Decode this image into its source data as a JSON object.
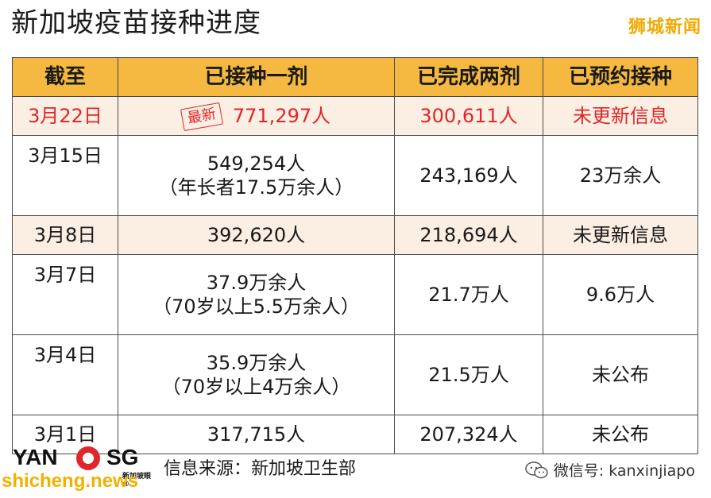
{
  "title": "新加坡疫苗接种进度",
  "brand_top": "狮城新闻",
  "table": {
    "headers": [
      "截至",
      "已接种一剂",
      "已完成两剂",
      "已预约接种"
    ],
    "rows": [
      {
        "date": "3月22日",
        "badge": "最新",
        "first_dose": [
          "771,297人"
        ],
        "two_doses": "300,611人",
        "booked": "未更新信息"
      },
      {
        "date": "3月15日",
        "first_dose": [
          "549,254人",
          "（年长者17.5万余人）"
        ],
        "two_doses": "243,169人",
        "booked": "23万余人"
      },
      {
        "date": "3月8日",
        "first_dose": [
          "392,620人"
        ],
        "two_doses": "218,694人",
        "booked": "未更新信息"
      },
      {
        "date": "3月7日",
        "first_dose": [
          "37.9万余人",
          "（70岁以上5.5万余人）"
        ],
        "two_doses": "21.7万人",
        "booked": "9.6万人"
      },
      {
        "date": "3月4日",
        "first_dose": [
          "35.9万余人",
          "（70岁以上4万余人）"
        ],
        "two_doses": "21.5万人",
        "booked": "未公布"
      },
      {
        "date": "3月1日",
        "first_dose": [
          "317,715人"
        ],
        "two_doses": "207,324人",
        "booked": "未公布"
      }
    ]
  },
  "footer": {
    "logo_left": "YAN",
    "logo_right": "SG",
    "logo_sub": "新加坡眼®",
    "source": "信息来源：新加坡卫生部",
    "wechat": "微信号: kanxinjiapo",
    "watermark": "shicheng.news"
  },
  "colors": {
    "header_bg": "#f5b840",
    "alt_row_bg": "#fbeee2",
    "latest_red": "#e0262b",
    "brand_yellow": "#f2a900"
  }
}
